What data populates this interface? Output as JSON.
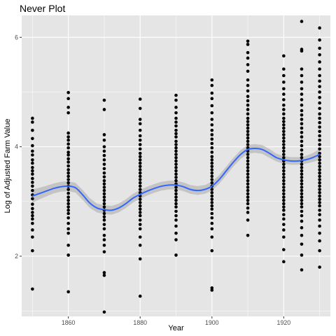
{
  "chart_data": {
    "type": "scatter",
    "title": "Never Plot",
    "xlabel": "Year",
    "ylabel": "Log of Adjusted Farm Value",
    "xlim": [
      1847,
      1933
    ],
    "ylim": [
      0.9,
      6.4
    ],
    "x_ticks": [
      1860,
      1880,
      1900,
      1920
    ],
    "y_ticks": [
      2,
      4,
      6
    ],
    "grid": true,
    "panel_background": "#e5e5e5",
    "grid_color": "#ffffff",
    "point_color": "#000000",
    "smooth_color": "#3366ff",
    "ribbon_color": "#bebebe",
    "points": [
      {
        "x": 1850,
        "ys": [
          4.52,
          4.45,
          4.3,
          4.15,
          4.02,
          3.92,
          3.85,
          3.76,
          3.7,
          3.62,
          3.56,
          3.5,
          3.42,
          3.35,
          3.28,
          3.2,
          3.12,
          3.05,
          2.95,
          2.87,
          2.8,
          2.74,
          2.68,
          2.6,
          2.48,
          2.35,
          2.1,
          1.4
        ]
      },
      {
        "x": 1860,
        "ys": [
          4.99,
          4.88,
          4.72,
          4.62,
          4.25,
          4.18,
          4.12,
          4.05,
          3.98,
          3.9,
          3.85,
          3.78,
          3.72,
          3.65,
          3.58,
          3.52,
          3.46,
          3.4,
          3.34,
          3.28,
          3.22,
          3.15,
          3.08,
          3.02,
          2.96,
          2.9,
          2.84,
          2.78,
          2.7,
          2.6,
          2.5,
          2.42,
          2.2,
          2.02,
          1.35
        ]
      },
      {
        "x": 1870,
        "ys": [
          4.85,
          4.68,
          4.22,
          4.12,
          4.0,
          3.92,
          3.84,
          3.76,
          3.68,
          3.6,
          3.52,
          3.45,
          3.38,
          3.32,
          3.26,
          3.2,
          3.14,
          3.08,
          3.02,
          2.96,
          2.9,
          2.84,
          2.78,
          2.72,
          2.66,
          2.58,
          2.5,
          2.38,
          2.3,
          2.2,
          2.08,
          1.7,
          1.65,
          0.98
        ]
      },
      {
        "x": 1880,
        "ys": [
          4.87,
          4.7,
          4.5,
          4.42,
          4.3,
          4.2,
          4.12,
          4.04,
          3.96,
          3.88,
          3.82,
          3.76,
          3.7,
          3.64,
          3.58,
          3.52,
          3.46,
          3.4,
          3.34,
          3.28,
          3.22,
          3.16,
          3.1,
          3.04,
          2.98,
          2.92,
          2.86,
          2.8,
          2.74,
          2.66,
          2.58,
          2.5,
          2.35,
          2.2,
          1.95,
          1.27
        ]
      },
      {
        "x": 1890,
        "ys": [
          4.94,
          4.85,
          4.72,
          4.62,
          4.52,
          4.45,
          4.38,
          4.3,
          4.24,
          4.18,
          4.1,
          4.04,
          3.98,
          3.92,
          3.86,
          3.8,
          3.74,
          3.68,
          3.62,
          3.56,
          3.5,
          3.44,
          3.38,
          3.32,
          3.26,
          3.2,
          3.14,
          3.08,
          3.02,
          2.96,
          2.9,
          2.82,
          2.74,
          2.66,
          2.55,
          2.42,
          2.3,
          2.02
        ]
      },
      {
        "x": 1900,
        "ys": [
          5.22,
          5.12,
          4.98,
          4.88,
          4.75,
          4.62,
          4.5,
          4.4,
          4.3,
          4.22,
          4.14,
          4.06,
          3.98,
          3.9,
          3.82,
          3.76,
          3.7,
          3.64,
          3.58,
          3.52,
          3.46,
          3.4,
          3.34,
          3.28,
          3.22,
          3.16,
          3.1,
          3.04,
          2.98,
          2.92,
          2.86,
          2.78,
          2.7,
          2.6,
          2.5,
          2.35,
          2.1,
          1.42,
          1.38
        ]
      },
      {
        "x": 1910,
        "ys": [
          5.93,
          5.87,
          5.72,
          5.62,
          5.5,
          5.38,
          5.22,
          5.12,
          5.02,
          4.92,
          4.84,
          4.76,
          4.68,
          4.6,
          4.52,
          4.46,
          4.4,
          4.34,
          4.28,
          4.22,
          4.16,
          4.1,
          4.04,
          3.98,
          3.92,
          3.86,
          3.8,
          3.74,
          3.68,
          3.62,
          3.56,
          3.5,
          3.44,
          3.38,
          3.32,
          3.26,
          3.2,
          3.14,
          3.08,
          3.02,
          2.96,
          2.88,
          2.8,
          2.66,
          2.38
        ]
      },
      {
        "x": 1920,
        "ys": [
          5.66,
          5.42,
          5.3,
          5.18,
          5.06,
          4.96,
          4.86,
          4.76,
          4.68,
          4.6,
          4.52,
          4.46,
          4.4,
          4.34,
          4.28,
          4.22,
          4.16,
          4.1,
          4.04,
          3.98,
          3.92,
          3.86,
          3.8,
          3.74,
          3.68,
          3.62,
          3.56,
          3.5,
          3.44,
          3.38,
          3.32,
          3.26,
          3.2,
          3.14,
          3.08,
          3.02,
          2.96,
          2.9,
          2.84,
          2.76,
          2.68,
          2.58,
          2.48,
          2.35,
          2.12,
          1.9
        ]
      },
      {
        "x": 1925,
        "ys": [
          6.29,
          5.78,
          5.75,
          5.42,
          5.3,
          5.18,
          5.06,
          4.96,
          4.86,
          4.76,
          4.66,
          4.58,
          4.5,
          4.42,
          4.34,
          4.26,
          4.18,
          4.1,
          4.02,
          3.94,
          3.86,
          3.8,
          3.74,
          3.68,
          3.62,
          3.56,
          3.5,
          3.44,
          3.38,
          3.32,
          3.26,
          3.2,
          3.14,
          3.08,
          3.02,
          2.96,
          2.9,
          2.82,
          2.74,
          2.64,
          2.52,
          2.38,
          2.22,
          2.02,
          1.75
        ]
      },
      {
        "x": 1930,
        "ys": [
          6.17,
          5.95,
          5.8,
          5.68,
          5.55,
          5.42,
          5.3,
          5.2,
          5.1,
          5.0,
          4.9,
          4.8,
          4.7,
          4.6,
          4.52,
          4.44,
          4.36,
          4.28,
          4.2,
          4.12,
          4.04,
          3.96,
          3.88,
          3.82,
          3.76,
          3.7,
          3.64,
          3.58,
          3.52,
          3.46,
          3.4,
          3.34,
          3.28,
          3.22,
          3.16,
          3.1,
          3.04,
          2.98,
          2.92,
          2.84,
          2.76,
          2.66,
          2.55,
          2.42,
          2.28,
          2.1,
          1.8
        ]
      }
    ],
    "smooth": {
      "x": [
        1850,
        1853,
        1856,
        1858,
        1860,
        1862,
        1864,
        1866,
        1868,
        1870,
        1872,
        1874,
        1876,
        1878,
        1880,
        1882,
        1884,
        1886,
        1888,
        1890,
        1892,
        1894,
        1896,
        1898,
        1900,
        1902,
        1904,
        1906,
        1908,
        1910,
        1912,
        1914,
        1916,
        1918,
        1920,
        1922,
        1924,
        1926,
        1928,
        1930
      ],
      "y": [
        3.1,
        3.17,
        3.24,
        3.27,
        3.28,
        3.25,
        3.12,
        2.97,
        2.88,
        2.85,
        2.84,
        2.88,
        2.96,
        3.06,
        3.13,
        3.19,
        3.24,
        3.28,
        3.3,
        3.3,
        3.27,
        3.22,
        3.2,
        3.22,
        3.28,
        3.4,
        3.56,
        3.72,
        3.86,
        3.95,
        3.97,
        3.95,
        3.88,
        3.8,
        3.76,
        3.74,
        3.74,
        3.76,
        3.8,
        3.86
      ],
      "se": [
        0.12,
        0.1,
        0.09,
        0.09,
        0.09,
        0.09,
        0.09,
        0.09,
        0.08,
        0.08,
        0.08,
        0.08,
        0.08,
        0.08,
        0.08,
        0.08,
        0.08,
        0.08,
        0.08,
        0.08,
        0.08,
        0.08,
        0.08,
        0.08,
        0.08,
        0.08,
        0.08,
        0.08,
        0.08,
        0.08,
        0.08,
        0.08,
        0.08,
        0.07,
        0.07,
        0.07,
        0.07,
        0.07,
        0.08,
        0.1
      ]
    }
  }
}
